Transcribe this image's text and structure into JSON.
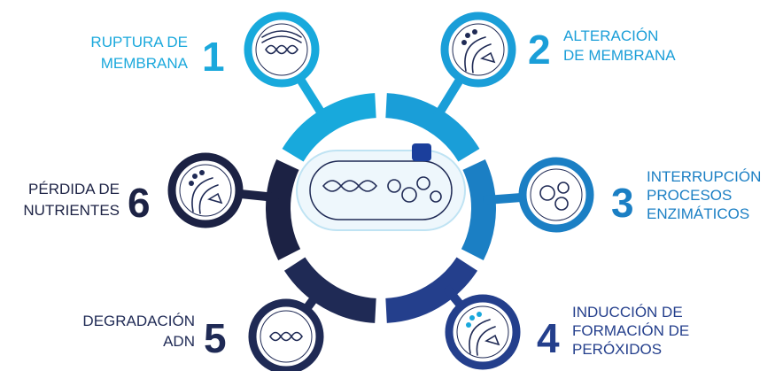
{
  "steps": [
    {
      "number": "1",
      "lines": [
        "RUPTURA DE",
        "MEMBRANA"
      ]
    },
    {
      "number": "2",
      "lines": [
        "ALTERACIÓN",
        "DE MEMBRANA"
      ]
    },
    {
      "number": "3",
      "lines": [
        "INTERRUPCIÓN",
        "PROCESOS",
        "ENZIMÁTICOS"
      ]
    },
    {
      "number": "4",
      "lines": [
        "INDUCCIÓN DE",
        "FORMACIÓN DE",
        "PERÓXIDOS"
      ]
    },
    {
      "number": "5",
      "lines": [
        "DEGRADACIÓN",
        "ADN"
      ]
    },
    {
      "number": "6",
      "lines": [
        "PÉRDIDA DE",
        "NUTRIENTES"
      ]
    }
  ]
}
